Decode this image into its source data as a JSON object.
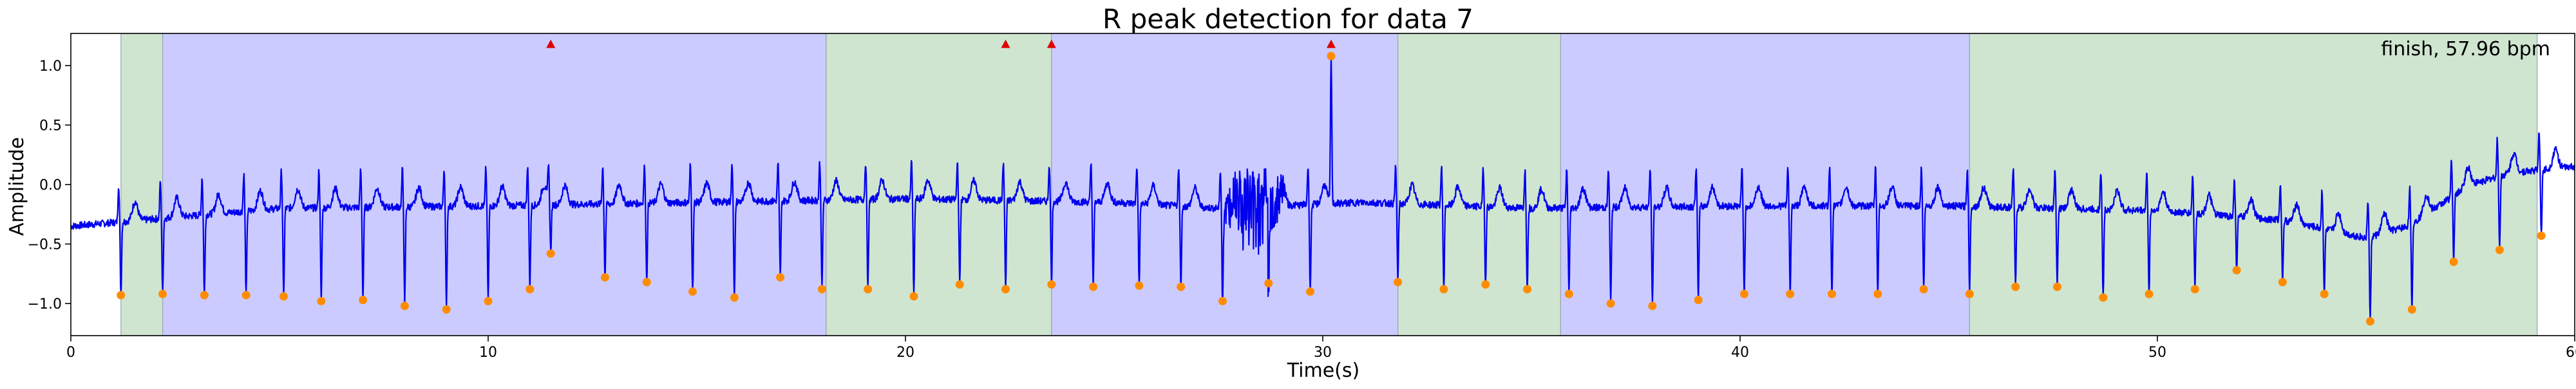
{
  "chart_data": {
    "type": "line",
    "title": "R peak detection for data 7",
    "xlabel": "Time(s)",
    "ylabel": "Amplitude",
    "annotation": "finish, 57.96 bpm",
    "xlim": [
      0,
      60
    ],
    "ylim": [
      -1.27,
      1.27
    ],
    "xticks": [
      0,
      10,
      20,
      30,
      40,
      50,
      60
    ],
    "yticks": [
      -1.0,
      -0.5,
      0.0,
      0.5,
      1.0
    ],
    "xtick_labels": [
      "0",
      "10",
      "20",
      "30",
      "40",
      "50",
      "60"
    ],
    "ytick_labels": [
      "−1.0",
      "−0.5",
      "0.0",
      "0.5",
      "1.0"
    ],
    "grid": false,
    "legend": "none",
    "colors": {
      "signal": "#0000ee",
      "peaks": "#ff8c00",
      "flags": "#dd0000",
      "green_span": "#cfe5cf",
      "blue_span": "#cbcbff"
    },
    "shaded_regions": [
      {
        "x0": 1.2,
        "x1": 2.2,
        "color": "green"
      },
      {
        "x0": 2.2,
        "x1": 18.1,
        "color": "blue"
      },
      {
        "x0": 18.1,
        "x1": 23.5,
        "color": "green"
      },
      {
        "x0": 23.5,
        "x1": 31.8,
        "color": "blue"
      },
      {
        "x0": 31.8,
        "x1": 35.7,
        "color": "green"
      },
      {
        "x0": 35.7,
        "x1": 45.5,
        "color": "blue"
      },
      {
        "x0": 45.5,
        "x1": 59.1,
        "color": "green"
      }
    ],
    "baseline_points": [
      {
        "x": 0.0,
        "y": -0.35
      },
      {
        "x": 5.0,
        "y": -0.2
      },
      {
        "x": 10.0,
        "y": -0.18
      },
      {
        "x": 15.0,
        "y": -0.15
      },
      {
        "x": 20.0,
        "y": -0.12
      },
      {
        "x": 25.0,
        "y": -0.15
      },
      {
        "x": 27.5,
        "y": -0.2
      },
      {
        "x": 31.0,
        "y": -0.15
      },
      {
        "x": 35.0,
        "y": -0.2
      },
      {
        "x": 40.0,
        "y": -0.18
      },
      {
        "x": 45.0,
        "y": -0.18
      },
      {
        "x": 50.0,
        "y": -0.22
      },
      {
        "x": 53.0,
        "y": -0.3
      },
      {
        "x": 55.0,
        "y": -0.45
      },
      {
        "x": 56.0,
        "y": -0.35
      },
      {
        "x": 57.5,
        "y": 0.0
      },
      {
        "x": 58.5,
        "y": 0.1
      },
      {
        "x": 60.0,
        "y": 0.15
      }
    ],
    "noise_segment": {
      "x0": 27.5,
      "x1": 29.2,
      "amplitude": 0.4
    },
    "r_peaks": [
      {
        "x": 1.2,
        "y": -0.93
      },
      {
        "x": 2.2,
        "y": -0.92
      },
      {
        "x": 3.2,
        "y": -0.93
      },
      {
        "x": 4.2,
        "y": -0.93
      },
      {
        "x": 5.1,
        "y": -0.94
      },
      {
        "x": 6.0,
        "y": -0.98
      },
      {
        "x": 7.0,
        "y": -0.97
      },
      {
        "x": 8.0,
        "y": -1.02
      },
      {
        "x": 9.0,
        "y": -1.05
      },
      {
        "x": 10.0,
        "y": -0.98
      },
      {
        "x": 11.0,
        "y": -0.88
      },
      {
        "x": 11.5,
        "y": -0.58
      },
      {
        "x": 12.8,
        "y": -0.78
      },
      {
        "x": 13.8,
        "y": -0.82
      },
      {
        "x": 14.9,
        "y": -0.9
      },
      {
        "x": 15.9,
        "y": -0.95
      },
      {
        "x": 17.0,
        "y": -0.78
      },
      {
        "x": 18.0,
        "y": -0.88
      },
      {
        "x": 19.1,
        "y": -0.88
      },
      {
        "x": 20.2,
        "y": -0.94
      },
      {
        "x": 21.3,
        "y": -0.84
      },
      {
        "x": 22.4,
        "y": -0.88
      },
      {
        "x": 23.5,
        "y": -0.84
      },
      {
        "x": 24.5,
        "y": -0.86
      },
      {
        "x": 25.6,
        "y": -0.85
      },
      {
        "x": 26.6,
        "y": -0.86
      },
      {
        "x": 27.6,
        "y": -0.98
      },
      {
        "x": 28.7,
        "y": -0.83
      },
      {
        "x": 29.7,
        "y": -0.9
      },
      {
        "x": 30.2,
        "y": 1.08
      },
      {
        "x": 31.8,
        "y": -0.82
      },
      {
        "x": 32.9,
        "y": -0.88
      },
      {
        "x": 33.9,
        "y": -0.84
      },
      {
        "x": 34.9,
        "y": -0.88
      },
      {
        "x": 35.9,
        "y": -0.92
      },
      {
        "x": 36.9,
        "y": -1.0
      },
      {
        "x": 37.9,
        "y": -1.02
      },
      {
        "x": 39.0,
        "y": -0.97
      },
      {
        "x": 40.1,
        "y": -0.92
      },
      {
        "x": 41.2,
        "y": -0.92
      },
      {
        "x": 42.2,
        "y": -0.92
      },
      {
        "x": 43.3,
        "y": -0.92
      },
      {
        "x": 44.4,
        "y": -0.88
      },
      {
        "x": 45.5,
        "y": -0.92
      },
      {
        "x": 46.6,
        "y": -0.86
      },
      {
        "x": 47.6,
        "y": -0.86
      },
      {
        "x": 48.7,
        "y": -0.95
      },
      {
        "x": 49.8,
        "y": -0.92
      },
      {
        "x": 50.9,
        "y": -0.88
      },
      {
        "x": 51.9,
        "y": -0.72
      },
      {
        "x": 53.0,
        "y": -0.82
      },
      {
        "x": 54.0,
        "y": -0.92
      },
      {
        "x": 55.1,
        "y": -1.15
      },
      {
        "x": 56.1,
        "y": -1.05
      },
      {
        "x": 57.1,
        "y": -0.65
      },
      {
        "x": 58.2,
        "y": -0.55
      },
      {
        "x": 59.2,
        "y": -0.43
      }
    ],
    "flag_markers": [
      {
        "x": 11.5,
        "y": 1.18
      },
      {
        "x": 22.4,
        "y": 1.18
      },
      {
        "x": 23.5,
        "y": 1.18
      },
      {
        "x": 30.2,
        "y": 1.18
      }
    ]
  }
}
